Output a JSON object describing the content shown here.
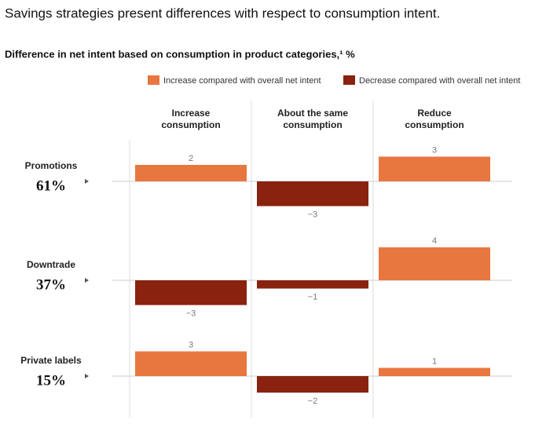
{
  "chart_data": {
    "type": "bar",
    "title": "Savings strategies present differences with respect to consumption intent.",
    "subtitle": "Difference in net intent based on consumption in product categories,¹ %",
    "legend": [
      {
        "name": "Increase compared with overall net intent",
        "color": "#e8773f"
      },
      {
        "name": "Decrease compared with overall net intent",
        "color": "#8a2210"
      }
    ],
    "categories": [
      "Increase consumption",
      "About the same consumption",
      "Reduce consumption"
    ],
    "rows": [
      {
        "name": "Promotions",
        "share": "61%",
        "values": [
          2,
          -3,
          3
        ],
        "value_labels": [
          "2",
          "−3",
          "3"
        ]
      },
      {
        "name": "Downtrade",
        "share": "37%",
        "values": [
          -3,
          -1,
          4
        ],
        "value_labels": [
          "−3",
          "−1",
          "4"
        ]
      },
      {
        "name": "Private labels",
        "share": "15%",
        "values": [
          3,
          -2,
          1
        ],
        "value_labels": [
          "3",
          "−2",
          "1"
        ]
      }
    ],
    "ylim": [
      -5,
      5
    ]
  }
}
